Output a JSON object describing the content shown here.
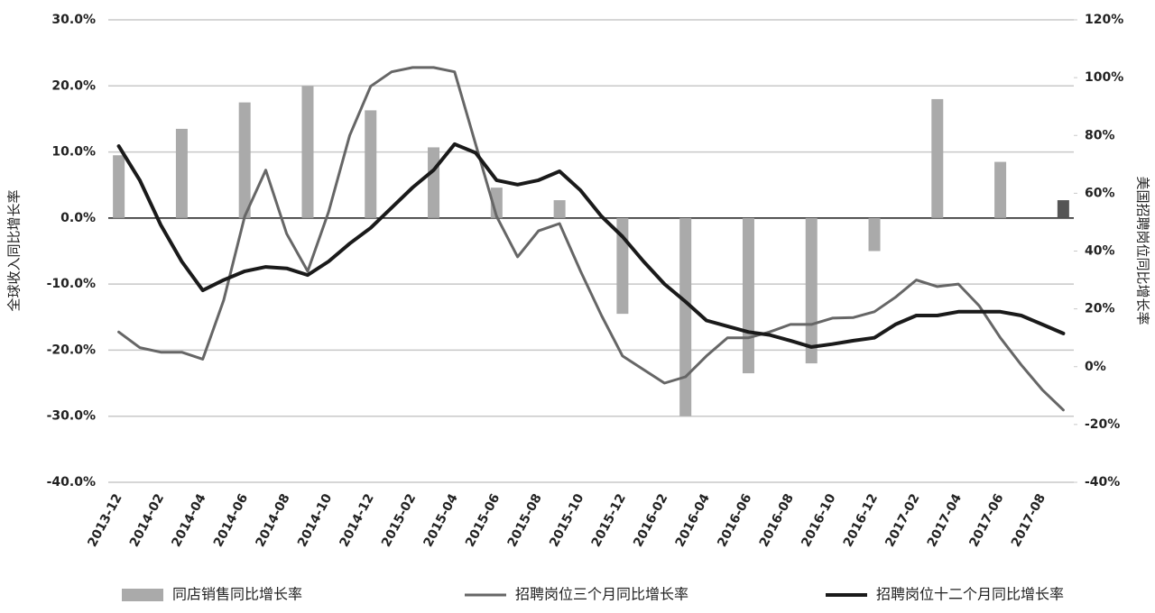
{
  "chart_data": {
    "type": "combo",
    "categories": [
      "2013-12",
      null,
      "2014-02",
      null,
      "2014-04",
      null,
      "2014-06",
      null,
      "2014-08",
      null,
      "2014-10",
      null,
      "2014-12",
      null,
      "2015-02",
      null,
      "2015-04",
      null,
      "2015-06",
      null,
      "2015-08",
      null,
      "2015-10",
      null,
      "2015-12",
      null,
      "2016-02",
      null,
      "2016-04",
      null,
      "2016-06",
      null,
      "2016-08",
      null,
      "2016-10",
      null,
      "2016-12",
      null,
      "2017-02",
      null,
      "2017-04",
      null,
      "2017-06",
      null,
      "2017-08",
      null
    ],
    "ylabel": "全球收入同比增长率",
    "y2label": "美国招聘岗位同比增长率",
    "ylim": [
      -40,
      30
    ],
    "yticks": [
      {
        "value": -40,
        "label": "-40.0%"
      },
      {
        "value": -30,
        "label": "-30.0%"
      },
      {
        "value": -20,
        "label": "-20.0%"
      },
      {
        "value": -10,
        "label": "-10.0%"
      },
      {
        "value": 0,
        "label": "0.0%"
      },
      {
        "value": 10,
        "label": "10.0%"
      },
      {
        "value": 20,
        "label": "20.0%"
      },
      {
        "value": 30,
        "label": "30.0%"
      }
    ],
    "y2lim": [
      -40,
      120
    ],
    "y2ticks": [
      {
        "value": -40,
        "label": "-40%"
      },
      {
        "value": -20,
        "label": "-20%"
      },
      {
        "value": 0,
        "label": "0%"
      },
      {
        "value": 20,
        "label": "20%"
      },
      {
        "value": 40,
        "label": "40%"
      },
      {
        "value": 60,
        "label": "60%"
      },
      {
        "value": 80,
        "label": "80%"
      },
      {
        "value": 100,
        "label": "100%"
      },
      {
        "value": 120,
        "label": "120%"
      }
    ],
    "grid": true,
    "legend": "bottom",
    "series": [
      {
        "name": "同店销售同比增长率",
        "type": "bar",
        "color": "#aaaaaa",
        "point_colors": [
          null,
          null,
          null,
          null,
          null,
          null,
          null,
          null,
          null,
          null,
          null,
          null,
          null,
          null,
          null,
          null,
          null,
          null,
          null,
          null,
          null,
          null,
          null,
          null,
          null,
          null,
          null,
          null,
          null,
          null,
          null,
          null,
          null,
          null,
          null,
          null,
          null,
          null,
          null,
          null,
          null,
          null,
          null,
          null,
          null,
          "#555555"
        ],
        "values": [
          9.5,
          null,
          null,
          13.5,
          null,
          null,
          17.5,
          null,
          null,
          20,
          null,
          null,
          16.3,
          null,
          null,
          10.7,
          null,
          null,
          4.6,
          null,
          null,
          2.7,
          null,
          null,
          -14.5,
          null,
          null,
          -30,
          null,
          null,
          -23.5,
          null,
          null,
          -22,
          null,
          null,
          -5,
          null,
          null,
          18,
          null,
          null,
          8.5,
          null,
          null,
          2.7
        ]
      },
      {
        "name": "招聘岗位三个月同比增长率",
        "type": "line",
        "axis": "y2",
        "color": "#666666",
        "values": [
          12,
          6.6,
          5,
          5,
          2.6,
          23,
          52,
          68,
          46,
          33,
          53.6,
          80,
          97,
          102,
          103.5,
          103.5,
          102,
          77,
          52,
          38,
          47,
          49.5,
          33,
          17.7,
          3.7,
          -1,
          -5.7,
          -3.5,
          3.7,
          10,
          10,
          12,
          14.6,
          14.6,
          16.8,
          17,
          19,
          24,
          30,
          27.7,
          28.6,
          21,
          10,
          0.6,
          -8,
          -15
        ]
      },
      {
        "name": "招聘岗位十二个月同比增长率",
        "type": "line",
        "axis": "y2",
        "color": "#1a1a1a",
        "values": [
          76.3,
          64.5,
          49,
          36.4,
          26.4,
          30,
          33,
          34.5,
          34,
          31.7,
          36.4,
          42.6,
          48,
          55,
          62,
          68,
          77,
          74,
          64.5,
          63,
          64.5,
          67.6,
          61,
          52,
          45,
          36.4,
          28.6,
          22.5,
          16,
          14,
          12,
          11,
          9,
          6.8,
          7.8,
          9,
          10,
          14.6,
          17.7,
          17.7,
          19,
          19,
          19,
          17.7,
          14.6,
          11.5
        ]
      }
    ]
  }
}
